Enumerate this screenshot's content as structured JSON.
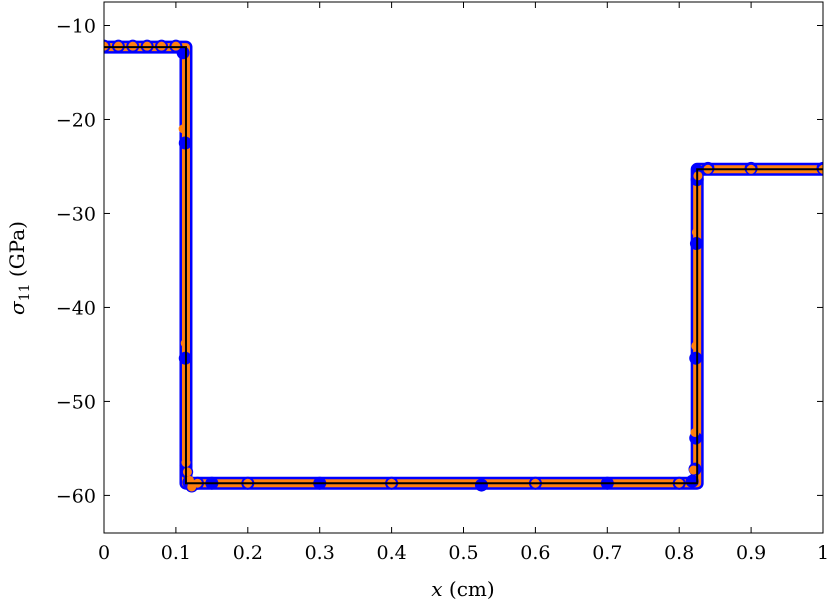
{
  "chart_data": {
    "type": "scatter",
    "xlabel_var": "x",
    "xlabel_unit": "(cm)",
    "ylabel_var": "σ",
    "ylabel_sub": "11",
    "ylabel_unit": "(GPa)",
    "xlim": [
      0,
      1
    ],
    "ylim": [
      -64,
      -7.5
    ],
    "x_ticks": [
      0,
      0.1,
      0.2,
      0.3,
      0.4,
      0.5,
      0.6,
      0.7,
      0.8,
      0.9,
      1
    ],
    "x_tick_labels": [
      "0",
      "0.1",
      "0.2",
      "0.3",
      "0.4",
      "0.5",
      "0.6",
      "0.7",
      "0.8",
      "0.9",
      "1"
    ],
    "y_ticks": [
      -60,
      -50,
      -40,
      -30,
      -20,
      -10
    ],
    "y_tick_labels": [
      "−60",
      "−50",
      "−40",
      "−30",
      "−20",
      "−10"
    ],
    "grid": false,
    "colors": {
      "reference_line": "#000000",
      "series_blue": "#0000ff",
      "series_orange": "#ff7f0e"
    },
    "series": [
      {
        "style": "line",
        "color": "#000000",
        "x": [
          0,
          0.114,
          0.114,
          0.825,
          0.825,
          1
        ],
        "y": [
          -12.3,
          -12.3,
          -58.7,
          -58.7,
          -25.3,
          -25.3
        ]
      },
      {
        "style": "markers",
        "color": "#0000ff",
        "x": [
          0.0,
          0.02,
          0.04,
          0.06,
          0.08,
          0.1,
          0.11,
          0.113,
          0.113,
          0.114,
          0.115,
          0.118,
          0.122,
          0.13,
          0.15,
          0.2,
          0.3,
          0.4,
          0.525,
          0.6,
          0.7,
          0.8,
          0.818,
          0.822,
          0.823,
          0.823,
          0.824,
          0.825,
          0.826,
          0.84,
          0.9,
          1.0
        ],
        "y": [
          -12.2,
          -12.2,
          -12.2,
          -12.2,
          -12.2,
          -12.2,
          -12.9,
          -22.5,
          -45.4,
          -56.8,
          -57.5,
          -58.6,
          -59.0,
          -58.7,
          -58.7,
          -58.7,
          -58.7,
          -58.7,
          -58.9,
          -58.7,
          -58.7,
          -58.7,
          -58.5,
          -57.2,
          -53.9,
          -45.4,
          -33.2,
          -26.4,
          -25.5,
          -25.2,
          -25.2,
          -25.2
        ]
      },
      {
        "style": "markers",
        "color": "#ff7f0e",
        "x": [
          0.0,
          0.02,
          0.04,
          0.06,
          0.08,
          0.1,
          0.11,
          0.113,
          0.114,
          0.116,
          0.119,
          0.122,
          0.13,
          0.2,
          0.4,
          0.6,
          0.8,
          0.82,
          0.822,
          0.823,
          0.824,
          0.826,
          0.84,
          0.9,
          1.0
        ],
        "y": [
          -12.2,
          -12.2,
          -12.2,
          -12.2,
          -12.2,
          -12.2,
          -21.0,
          -43.8,
          -56.5,
          -57.5,
          -58.4,
          -59.1,
          -58.7,
          -58.7,
          -58.7,
          -58.7,
          -58.7,
          -57.3,
          -53.3,
          -44.1,
          -32.0,
          -26.0,
          -25.3,
          -25.3,
          -25.3
        ]
      }
    ]
  }
}
